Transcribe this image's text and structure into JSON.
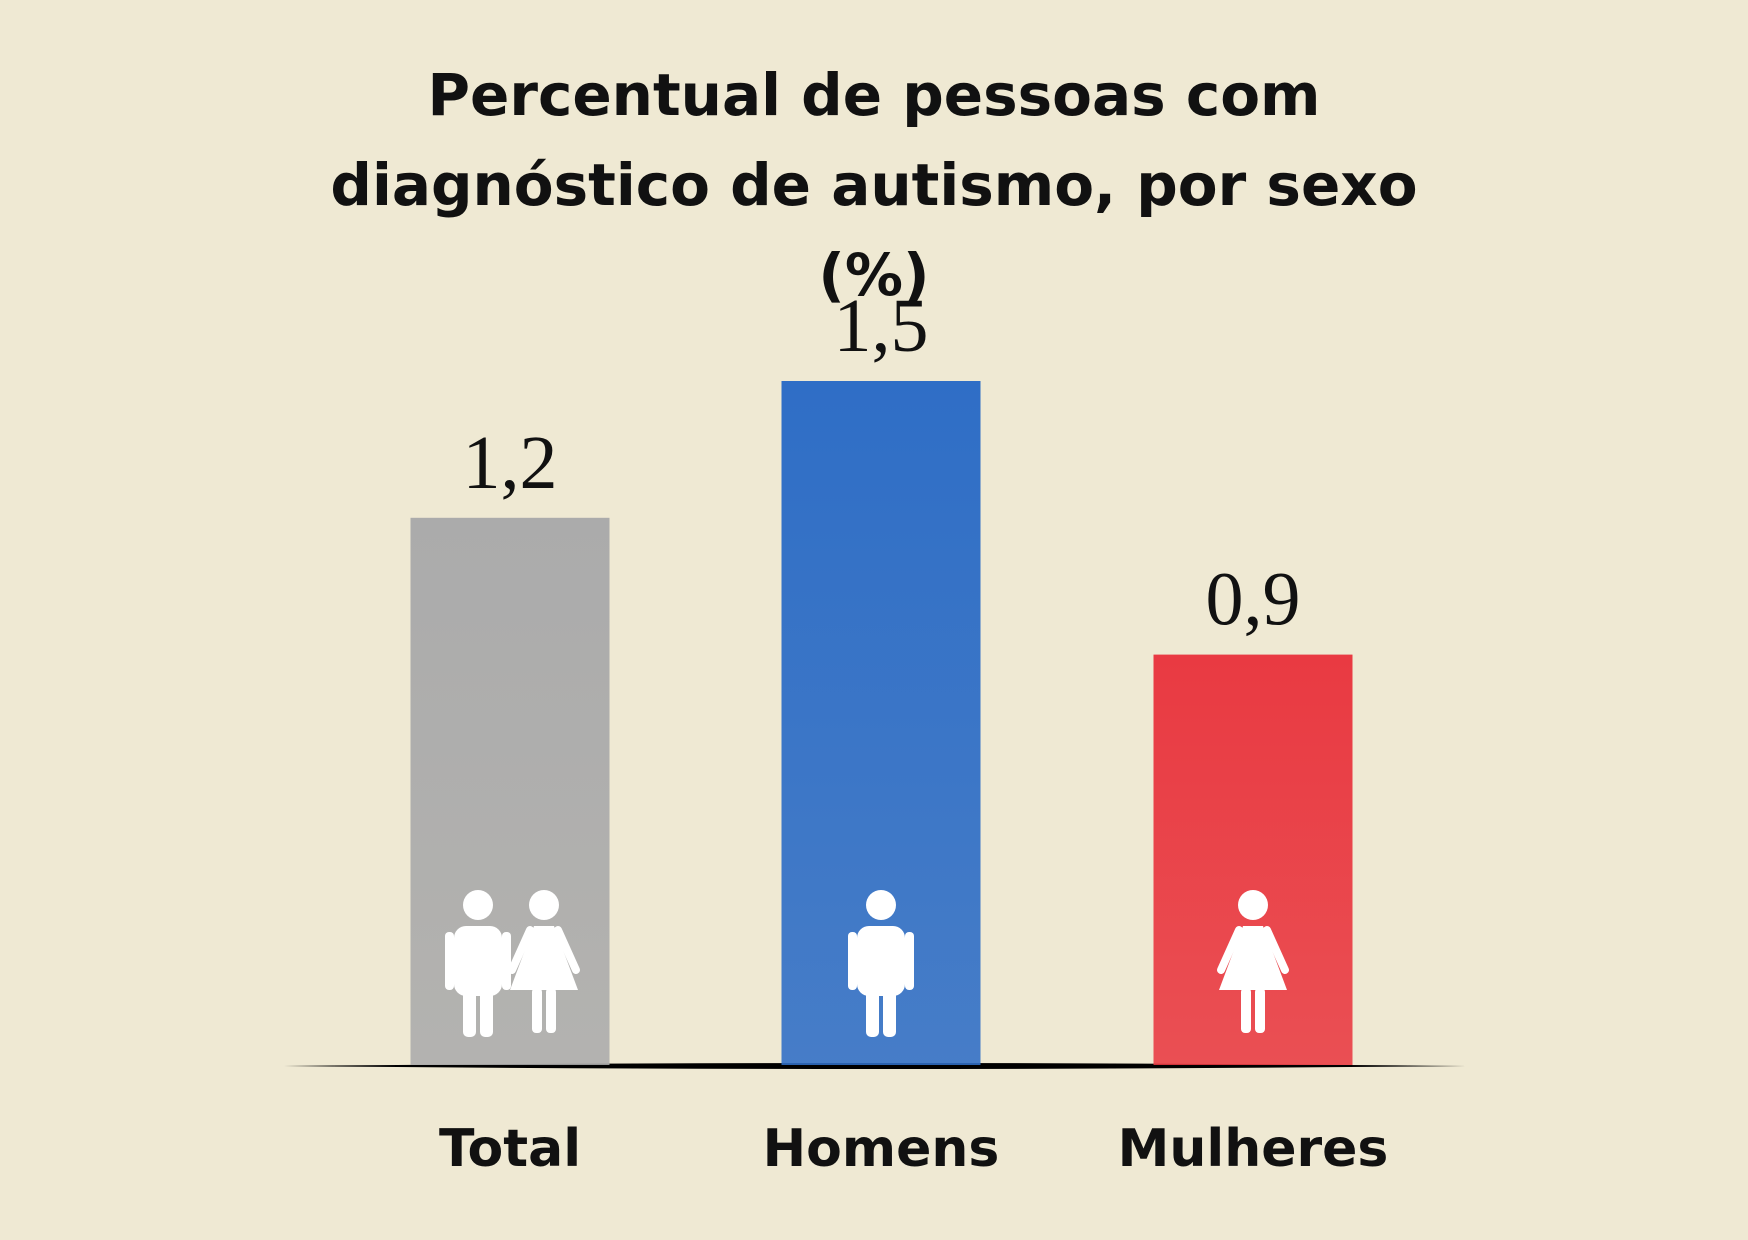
{
  "chart_data": {
    "type": "bar",
    "title": "Percentual de pessoas com diagnóstico de autismo, por sexo (%)",
    "categories": [
      "Total",
      "Homens",
      "Mulheres"
    ],
    "values": [
      1.2,
      1.5,
      0.9
    ],
    "value_labels": [
      "1,2",
      "1,5",
      "0,9"
    ],
    "colors": [
      "#ababab",
      "#2f6ec6",
      "#e93a42"
    ]
  }
}
